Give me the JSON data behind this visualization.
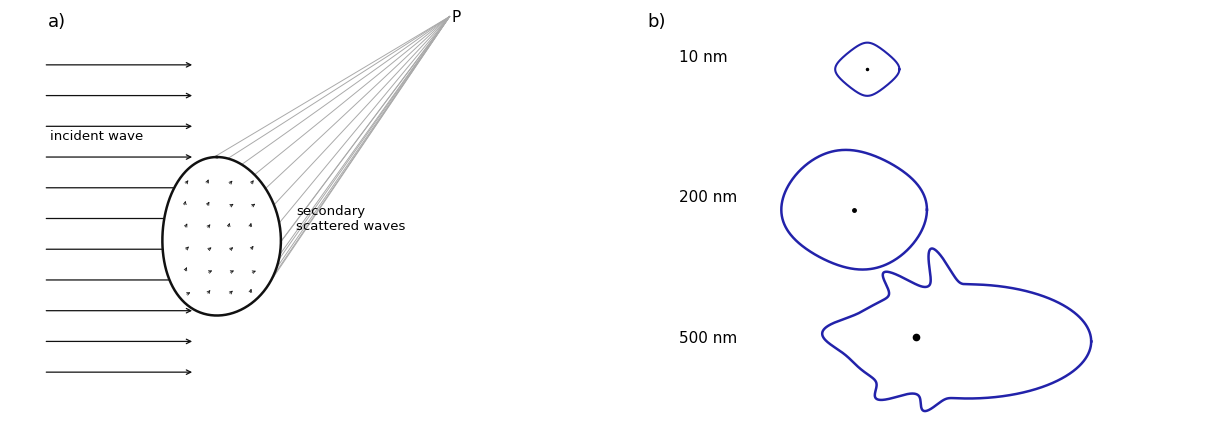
{
  "bg_color": "#ffffff",
  "panel_a_label": "a)",
  "panel_b_label": "b)",
  "incident_wave_label": "incident wave",
  "secondary_label": "secondary\nscattered waves",
  "point_P_label": "P",
  "nm_labels": [
    "10 nm",
    "200 nm",
    "500 nm"
  ],
  "blob_color": "#2222aa",
  "arrow_color": "#111111",
  "scatter_line_color": "#aaaaaa",
  "blob_outline_color": "#111111"
}
